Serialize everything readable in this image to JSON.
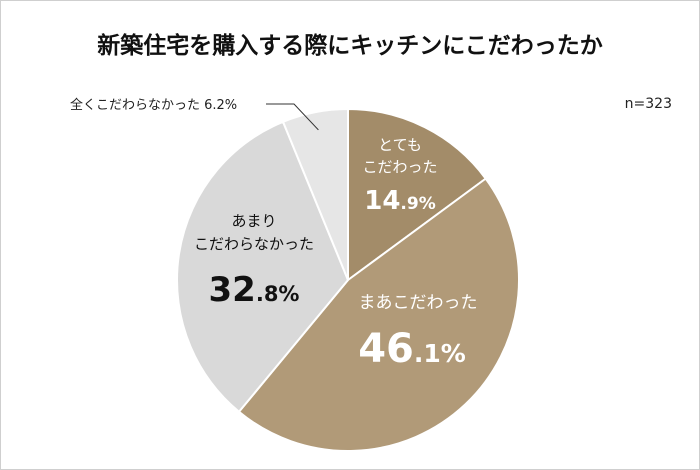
{
  "chart_data": {
    "type": "pie",
    "title": "新築住宅を購入する際にキッチンにこだわったか",
    "note": "n=323",
    "start": "12 o'clock",
    "direction": "clockwise",
    "slices": [
      {
        "label": "とても\nこだわった",
        "value": 14.9,
        "value_label": "14.9%",
        "color": "#a38c69",
        "text_color": "#ffffff"
      },
      {
        "label": "まあこだわった",
        "value": 46.1,
        "value_label": "46.1%",
        "color": "#b19a78",
        "text_color": "#ffffff"
      },
      {
        "label": "あまり\nこだわらなかった",
        "value": 32.8,
        "value_label": "32.8%",
        "color": "#d9d9d9",
        "text_color": "#111111"
      },
      {
        "label": "全くこだわらなかった",
        "value": 6.2,
        "value_label": "6.2%",
        "color": "#e6e6e6",
        "text_color": "#222222"
      }
    ]
  }
}
